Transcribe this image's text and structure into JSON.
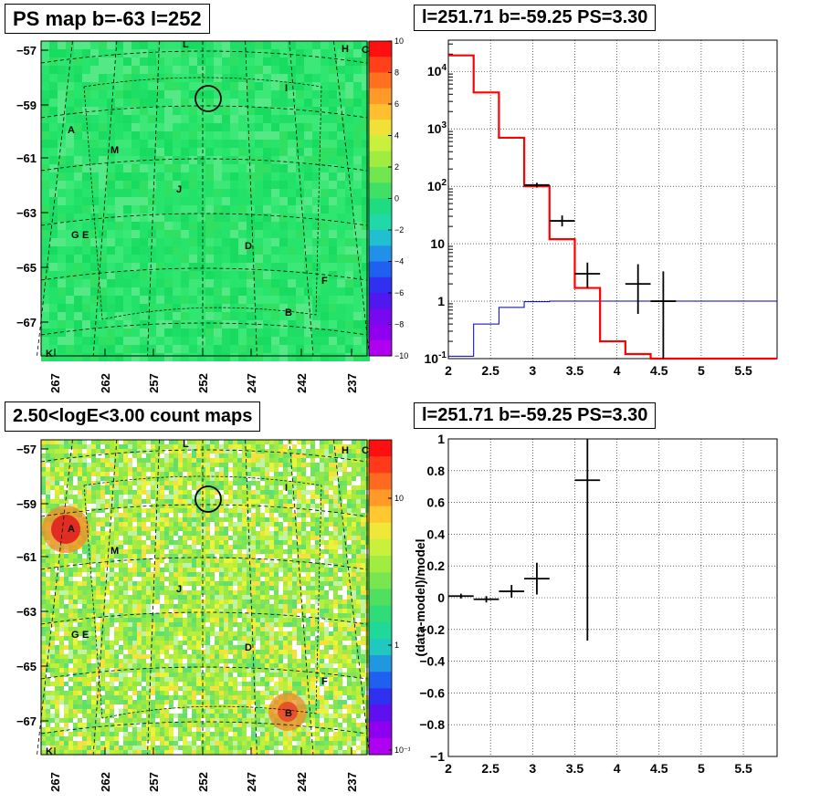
{
  "colors": {
    "map_bg": "#22e26a",
    "count_bg": "#8fe84a",
    "model_line": "#ff0000",
    "bkg_line": "#0000aa",
    "grid": "#000000"
  },
  "panels": {
    "ps_map": {
      "title": "PS map b=-63 l=252",
      "lat_ticks": [
        "-57",
        "-59",
        "-61",
        "-63",
        "-65",
        "-67"
      ],
      "lon_ticks": [
        "267",
        "262",
        "257",
        "252",
        "247",
        "242",
        "237"
      ],
      "colorbar_ticks": [
        "10",
        "8",
        "6",
        "4",
        "2",
        "0",
        "−2",
        "−4",
        "−6",
        "−8",
        "−10"
      ],
      "labels": [
        "L",
        "H",
        "C",
        "I",
        "A",
        "M",
        "J",
        "G E",
        "D",
        "F",
        "B",
        "K"
      ]
    },
    "count_map": {
      "title": "2.50<logE<3.00 count maps",
      "lat_ticks": [
        "-57",
        "-59",
        "-61",
        "-63",
        "-65",
        "-67"
      ],
      "lon_ticks": [
        "267",
        "262",
        "257",
        "252",
        "247",
        "242",
        "237"
      ],
      "colorbar_ticks": [
        "10",
        "1",
        "10⁻¹"
      ],
      "labels": [
        "L",
        "H",
        "C",
        "I",
        "A",
        "M",
        "J",
        "G E",
        "D",
        "F",
        "B",
        "K"
      ]
    },
    "spectrum": {
      "title": "l=251.71 b=-59.25 PS=3.30"
    },
    "residual": {
      "title": "l=251.71 b=-59.25 PS=3.30"
    }
  },
  "chart_data": [
    {
      "type": "heatmap",
      "title": "PS map b=-63 l=252",
      "xlabel": "",
      "ylabel": "",
      "x_ticks": [
        267,
        262,
        257,
        252,
        247,
        242,
        237
      ],
      "y_ticks": [
        -57,
        -59,
        -61,
        -63,
        -65,
        -67
      ],
      "colorbar_range": [
        -10,
        10
      ],
      "colorbar_ticks": [
        10,
        8,
        6,
        4,
        2,
        0,
        -2,
        -4,
        -6,
        -8,
        -10
      ]
    },
    {
      "type": "heatmap",
      "title": "2.50<logE<3.00 count maps",
      "x_ticks": [
        267,
        262,
        257,
        252,
        247,
        242,
        237
      ],
      "y_ticks": [
        -57,
        -59,
        -61,
        -63,
        -65,
        -67
      ],
      "colorbar_scale": "log",
      "colorbar_ticks": [
        10,
        1,
        0.1
      ]
    },
    {
      "type": "line",
      "title": "l=251.71 b=-59.25 PS=3.30",
      "yscale": "log",
      "xlim": [
        2,
        5.9
      ],
      "ylim": [
        0.1,
        35000
      ],
      "x_ticks": [
        2,
        2.5,
        3,
        3.5,
        4,
        4.5,
        5,
        5.5
      ],
      "y_ticks": [
        "10^-1",
        "1",
        "10",
        "10^2",
        "10^3",
        "10^4"
      ],
      "grid": true,
      "series": [
        {
          "kind": "step",
          "color": "red",
          "edges": [
            2.0,
            2.3,
            2.6,
            2.9,
            3.2,
            3.5,
            3.8,
            4.1,
            4.4,
            5.9
          ],
          "values": [
            19000,
            4300,
            700,
            100,
            12,
            1.7,
            0.2,
            0.12,
            0.1
          ]
        },
        {
          "kind": "step",
          "color": "blue",
          "edges": [
            2.0,
            2.3,
            2.6,
            2.9,
            3.2,
            3.5,
            5.9
          ],
          "values": [
            0.11,
            0.4,
            0.78,
            0.98,
            1.0,
            1.0
          ]
        },
        {
          "kind": "errorbar",
          "color": "black",
          "points": [
            {
              "x": 3.05,
              "y": 105,
              "xerr": 0.15,
              "ylo": 95,
              "yhi": 115
            },
            {
              "x": 3.35,
              "y": 25,
              "xerr": 0.15,
              "ylo": 20,
              "yhi": 31
            },
            {
              "x": 3.65,
              "y": 3,
              "xerr": 0.15,
              "ylo": 1.7,
              "yhi": 4.7
            },
            {
              "x": 4.25,
              "y": 2,
              "xerr": 0.15,
              "ylo": 0.6,
              "yhi": 4.4
            },
            {
              "x": 4.55,
              "y": 1,
              "xerr": 0.15,
              "ylo": 0.1,
              "yhi": 3.3
            }
          ]
        }
      ]
    },
    {
      "type": "scatter",
      "title": "l=251.71 b=-59.25 PS=3.30",
      "ylabel": "(data-model)/model",
      "xlim": [
        2,
        5.9
      ],
      "ylim": [
        -1,
        1
      ],
      "x_ticks": [
        2,
        2.5,
        3,
        3.5,
        4,
        4.5,
        5,
        5.5
      ],
      "y_ticks": [
        1,
        0.8,
        0.6,
        0.4,
        0.2,
        0,
        -0.2,
        -0.4,
        -0.6,
        -0.8,
        -1
      ],
      "grid": true,
      "points": [
        {
          "x": 2.15,
          "y": 0.01,
          "xerr": 0.15,
          "yerr": 0.015
        },
        {
          "x": 2.45,
          "y": -0.01,
          "xerr": 0.15,
          "yerr": 0.02
        },
        {
          "x": 2.75,
          "y": 0.04,
          "xerr": 0.15,
          "yerr": 0.04
        },
        {
          "x": 3.05,
          "y": 0.12,
          "xerr": 0.15,
          "yerr": 0.1
        },
        {
          "x": 3.65,
          "y": 0.74,
          "xerr": 0.15,
          "ylo": -0.27,
          "yhi": 1.0
        }
      ]
    }
  ]
}
